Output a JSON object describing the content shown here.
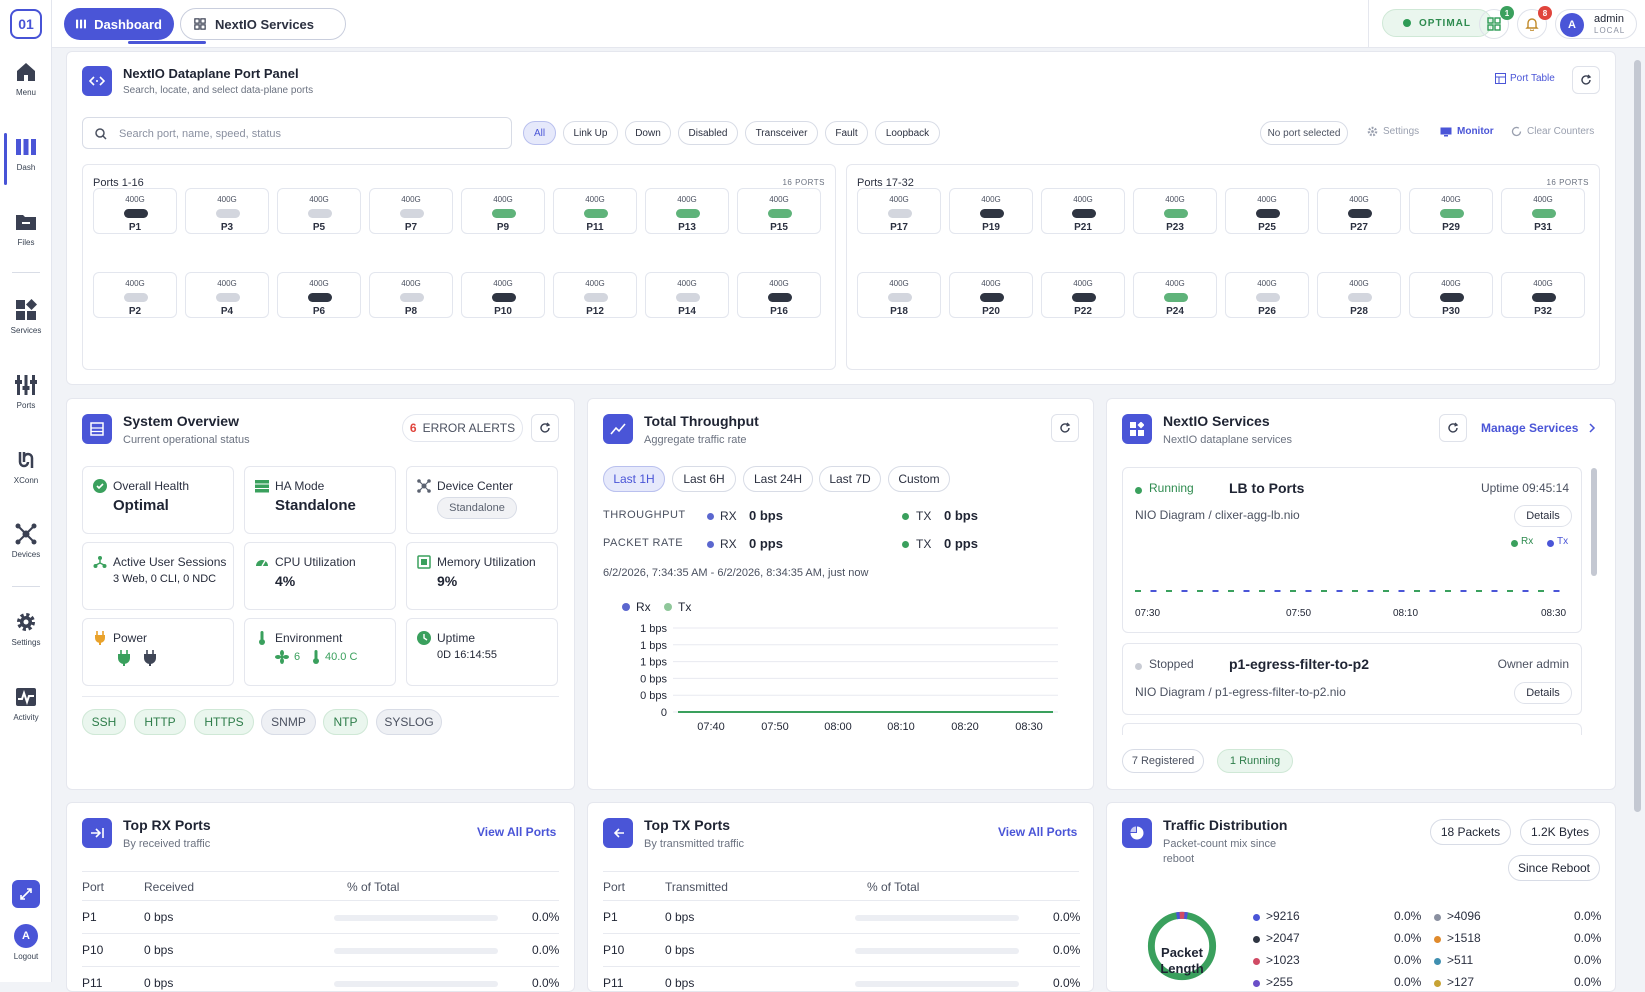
{
  "sidebar": {
    "logo": "01",
    "items": [
      {
        "label": "Menu",
        "icon": "home-icon"
      },
      {
        "label": "Dash",
        "icon": "bars-icon"
      },
      {
        "label": "Files",
        "icon": "folder-icon"
      },
      {
        "label": "Services",
        "icon": "grid-icon"
      },
      {
        "label": "Ports",
        "icon": "sliders-icon"
      },
      {
        "label": "XConn",
        "icon": "link-icon"
      },
      {
        "label": "Devices",
        "icon": "network-icon"
      },
      {
        "label": "Settings",
        "icon": "gear-icon"
      },
      {
        "label": "Activity",
        "icon": "activity-icon"
      }
    ],
    "logout": {
      "avatar": "A",
      "label": "Logout"
    }
  },
  "topbar": {
    "tabs": [
      {
        "label": "Dashboard"
      },
      {
        "label": "NextIO Services"
      }
    ],
    "status": "OPTIMAL",
    "apps_badge": "1",
    "notif_badge": "8",
    "user": {
      "avatar": "A",
      "name": "admin",
      "realm": "LOCAL"
    }
  },
  "port_panel": {
    "title": "NextIO Dataplane Port Panel",
    "subtitle": "Search, locate, and select data-plane ports",
    "port_table_label": "Port Table",
    "search_placeholder": "Search port, name, speed, status",
    "filters": [
      "All",
      "Link Up",
      "Down",
      "Disabled",
      "Transceiver",
      "Fault",
      "Loopback"
    ],
    "no_port_selected": "No port selected",
    "settings": "Settings",
    "monitor": "Monitor",
    "clear_counters": "Clear Counters",
    "groups": [
      {
        "title": "Ports 1-16",
        "count": "16 PORTS",
        "top": [
          [
            "P1",
            "down"
          ],
          [
            "P3",
            "dis"
          ],
          [
            "P5",
            "dis"
          ],
          [
            "P7",
            "dis"
          ],
          [
            "P9",
            "up"
          ],
          [
            "P11",
            "up"
          ],
          [
            "P13",
            "up"
          ],
          [
            "P15",
            "up"
          ]
        ],
        "bottom": [
          [
            "P2",
            "dis"
          ],
          [
            "P4",
            "dis"
          ],
          [
            "P6",
            "down"
          ],
          [
            "P8",
            "dis"
          ],
          [
            "P10",
            "down"
          ],
          [
            "P12",
            "dis"
          ],
          [
            "P14",
            "dis"
          ],
          [
            "P16",
            "down"
          ]
        ]
      },
      {
        "title": "Ports 17-32",
        "count": "16 PORTS",
        "top": [
          [
            "P17",
            "dis"
          ],
          [
            "P19",
            "down"
          ],
          [
            "P21",
            "down"
          ],
          [
            "P23",
            "up"
          ],
          [
            "P25",
            "down"
          ],
          [
            "P27",
            "down"
          ],
          [
            "P29",
            "up"
          ],
          [
            "P31",
            "up"
          ]
        ],
        "bottom": [
          [
            "P18",
            "dis"
          ],
          [
            "P20",
            "down"
          ],
          [
            "P22",
            "down"
          ],
          [
            "P24",
            "up"
          ],
          [
            "P26",
            "dis"
          ],
          [
            "P28",
            "dis"
          ],
          [
            "P30",
            "down"
          ],
          [
            "P32",
            "down"
          ]
        ]
      }
    ],
    "speed": "400G"
  },
  "system": {
    "title": "System Overview",
    "subtitle": "Current operational status",
    "alerts_count": "6",
    "alerts_label": "ERROR ALERTS",
    "overall_health_label": "Overall Health",
    "overall_health": "Optimal",
    "ha_label": "HA Mode",
    "ha": "Standalone",
    "device_center_label": "Device Center",
    "device_center": "Standalone",
    "sessions_label": "Active User Sessions",
    "sessions": "3 Web, 0 CLI, 0 NDC",
    "cpu_label": "CPU Utilization",
    "cpu": "4%",
    "mem_label": "Memory Utilization",
    "mem": "9%",
    "power_label": "Power",
    "env_label": "Environment",
    "fans": "6",
    "temp": "40.0 C",
    "uptime_label": "Uptime",
    "uptime": "0D 16:14:55",
    "protocols": [
      "SSH",
      "HTTP",
      "HTTPS",
      "SNMP",
      "NTP",
      "SYSLOG"
    ]
  },
  "throughput": {
    "title": "Total Throughput",
    "subtitle": "Aggregate traffic rate",
    "ranges": [
      "Last 1H",
      "Last 6H",
      "Last 24H",
      "Last 7D",
      "Custom"
    ],
    "throughput_label": "THROUGHPUT",
    "packet_label": "PACKET RATE",
    "rx": "RX",
    "tx": "TX",
    "rx_bps": "0 bps",
    "tx_bps": "0 bps",
    "rx_pps": "0 pps",
    "tx_pps": "0 pps",
    "range_text": "6/2/2026, 7:34:35 AM - 6/2/2026, 8:34:35 AM, just now",
    "colors": {
      "rx": "#5b67cf",
      "tx": "#8fc79a"
    }
  },
  "chart_data": {
    "type": "line",
    "legend": [
      "Rx",
      "Tx"
    ],
    "x": [
      "07:40",
      "07:50",
      "08:00",
      "08:10",
      "08:20",
      "08:30"
    ],
    "y_ticks": [
      "1 bps",
      "1 bps",
      "1 bps",
      "0 bps",
      "0 bps",
      "0"
    ],
    "series": [
      {
        "name": "Rx",
        "values": [
          0,
          0,
          0,
          0,
          0,
          0
        ]
      },
      {
        "name": "Tx",
        "values": [
          0,
          0,
          0,
          0,
          0,
          0
        ]
      }
    ]
  },
  "services": {
    "title": "NextIO Services",
    "subtitle": "NextIO dataplane services",
    "manage": "Manage Services",
    "items": [
      {
        "status": "Running",
        "name": "LB to Ports",
        "meta": "Uptime 09:45:14",
        "path": "NIO Diagram / clixer-agg-lb.nio",
        "details": "Details",
        "legend": [
          "Rx",
          "Tx"
        ],
        "times": [
          "07:30",
          "07:50",
          "08:10",
          "08:30"
        ]
      },
      {
        "status": "Stopped",
        "name": "p1-egress-filter-to-p2",
        "meta": "Owner admin",
        "path": "NIO Diagram / p1-egress-filter-to-p2.nio",
        "details": "Details"
      }
    ],
    "registered": "7 Registered",
    "running": "1 Running"
  },
  "top_rx": {
    "title": "Top RX Ports",
    "subtitle": "By received traffic",
    "link": "View All Ports",
    "headers": [
      "Port",
      "Received",
      "% of Total"
    ],
    "rows": [
      [
        "P1",
        "0 bps",
        "0.0%"
      ],
      [
        "P10",
        "0 bps",
        "0.0%"
      ],
      [
        "P11",
        "0 bps",
        "0.0%"
      ]
    ]
  },
  "top_tx": {
    "title": "Top TX Ports",
    "subtitle": "By transmitted traffic",
    "link": "View All Ports",
    "headers": [
      "Port",
      "Transmitted",
      "% of Total"
    ],
    "rows": [
      [
        "P1",
        "0 bps",
        "0.0%"
      ],
      [
        "P10",
        "0 bps",
        "0.0%"
      ],
      [
        "P11",
        "0 bps",
        "0.0%"
      ]
    ]
  },
  "traffic": {
    "title": "Traffic Distribution",
    "subtitle1": "Packet-count mix since",
    "subtitle2": "reboot",
    "packets": "18 Packets",
    "bytes": "1.2K Bytes",
    "since": "Since Reboot",
    "donut1": "Packet",
    "donut2": "Length",
    "legend": [
      {
        "label": ">9216",
        "value": "0.0%",
        "color": "#4a55d7"
      },
      {
        "label": ">4096",
        "value": "0.0%",
        "color": "#8a90a0"
      },
      {
        "label": ">2047",
        "value": "0.0%",
        "color": "#2f3542"
      },
      {
        "label": ">1518",
        "value": "0.0%",
        "color": "#e08a2c"
      },
      {
        "label": ">1023",
        "value": "0.0%",
        "color": "#d04a64"
      },
      {
        "label": ">511",
        "value": "0.0%",
        "color": "#3f8fb0"
      },
      {
        "label": ">255",
        "value": "0.0%",
        "color": "#6b4fc8"
      },
      {
        "label": ">127",
        "value": "0.0%",
        "color": "#c7a334"
      }
    ]
  }
}
